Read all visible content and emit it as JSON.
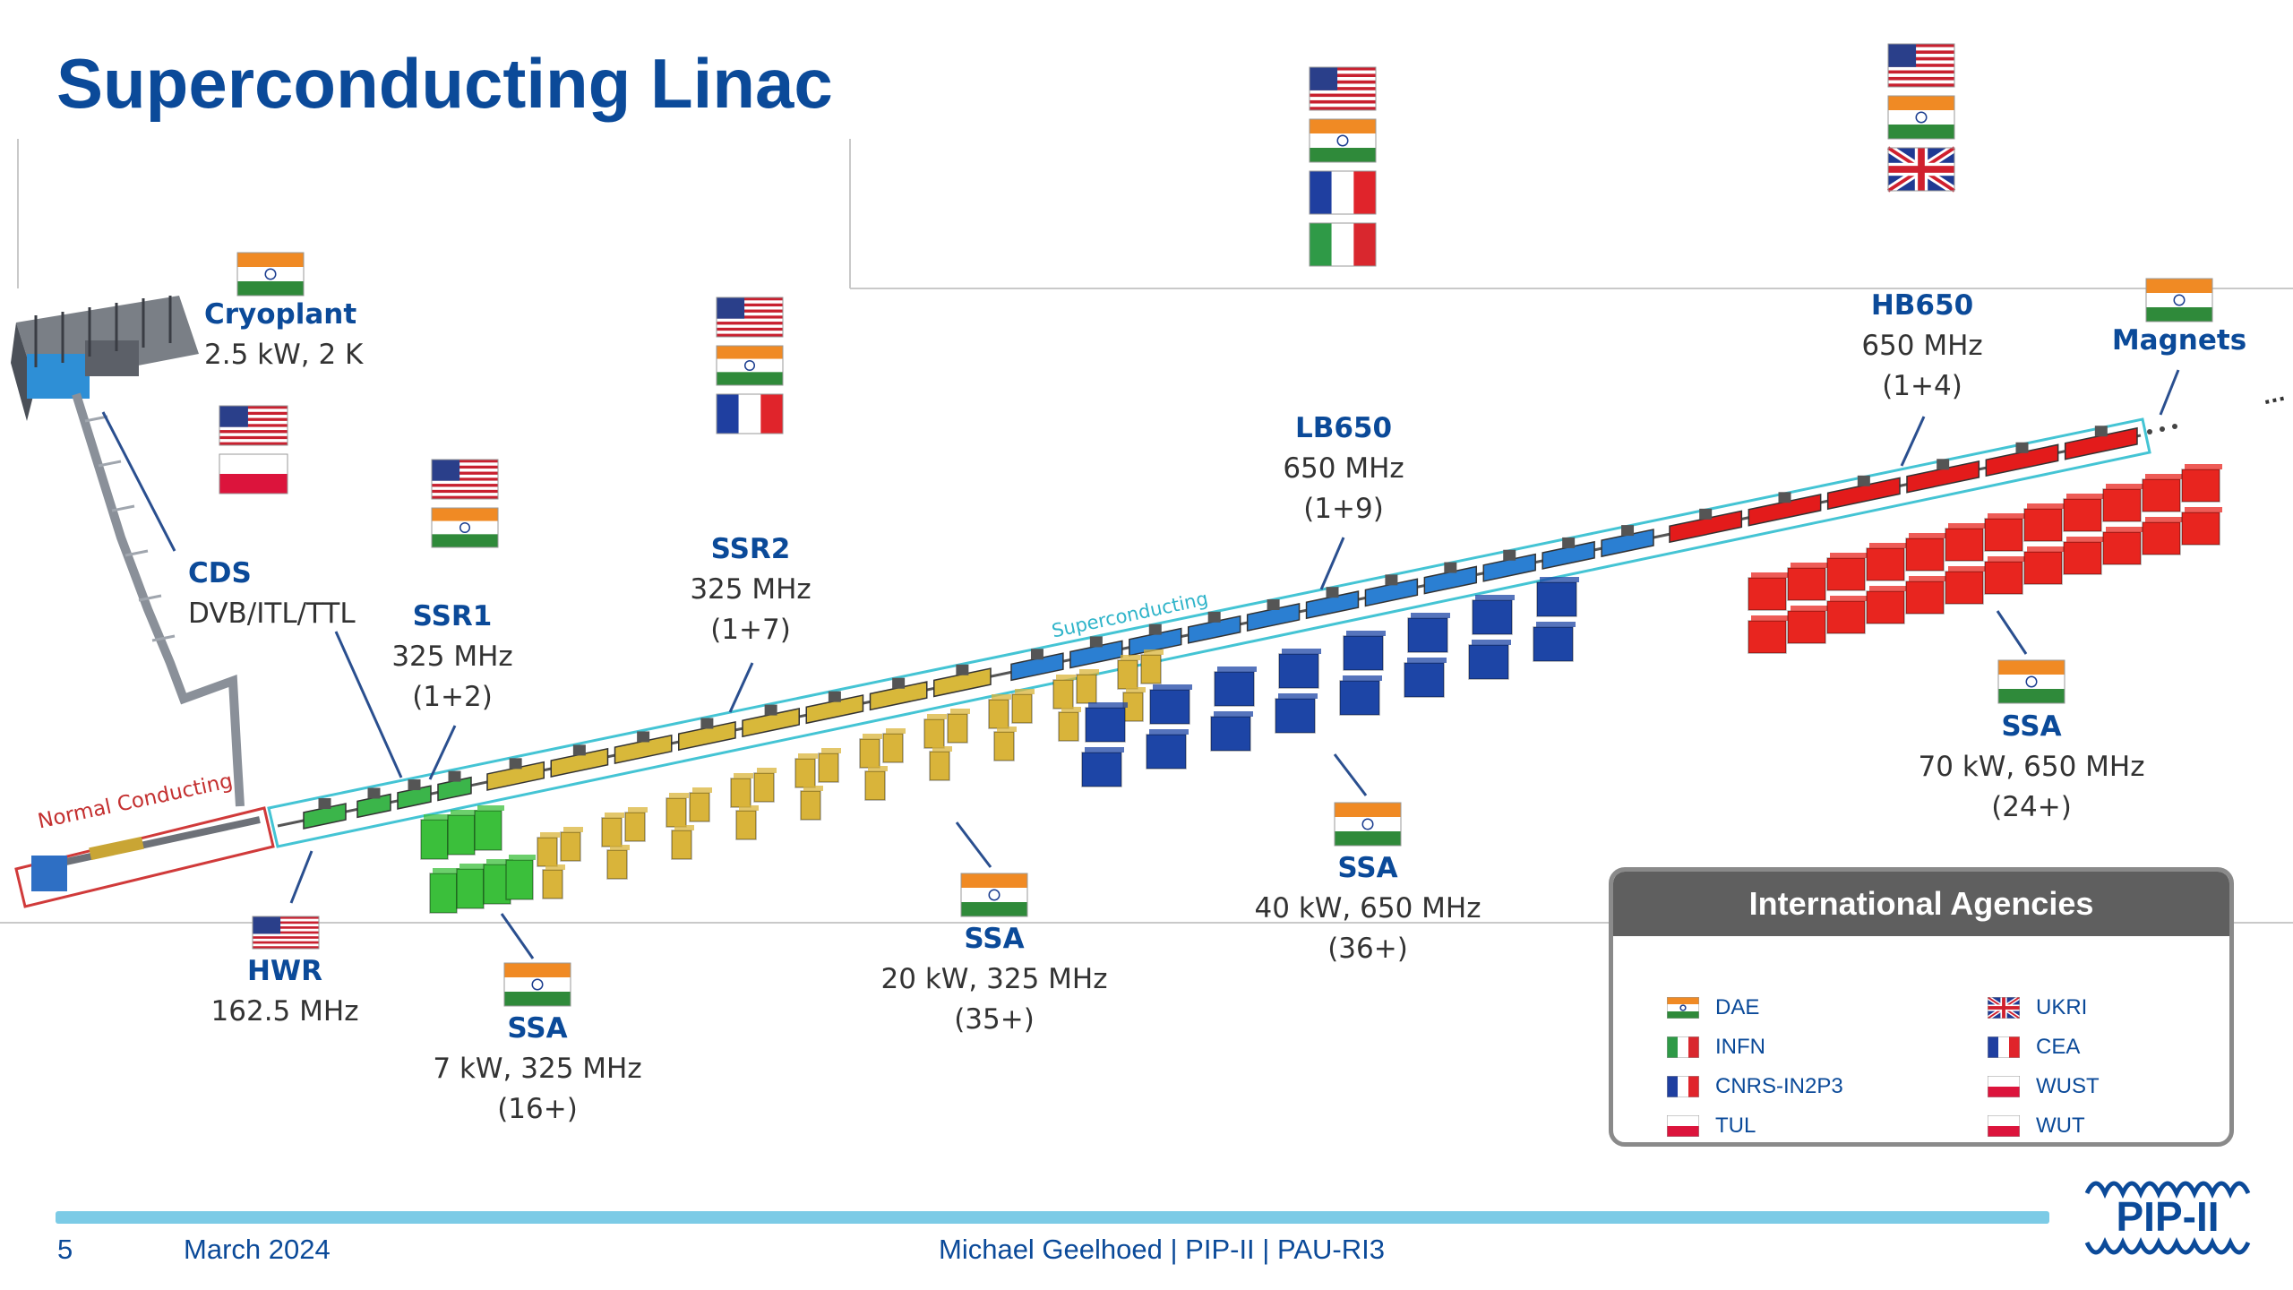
{
  "slide": {
    "title": "Superconducting Linac",
    "page_number": "5",
    "date": "March 2024",
    "footer_center": "Michael Geelhoed | PIP-II | PAU-RI3",
    "logo_text": "PIP-II",
    "ellipsis": "..."
  },
  "section_labels": {
    "normal_conducting": "Normal Conducting",
    "superconducting": "Superconducting"
  },
  "components": {
    "cryoplant": {
      "name": "Cryoplant",
      "desc": "2.5 kW, 2 K",
      "flags": [
        "India"
      ]
    },
    "cds": {
      "name": "CDS",
      "desc": "DVB/ITL/TTL",
      "flags": [
        "USA",
        "Poland"
      ]
    },
    "ssr1": {
      "name": "SSR1",
      "freq": "325 MHz",
      "count": "(1+2)",
      "flags": [
        "USA",
        "India"
      ]
    },
    "ssr2": {
      "name": "SSR2",
      "freq": "325 MHz",
      "count": "(1+7)",
      "flags": [
        "USA",
        "India",
        "France"
      ]
    },
    "lb650": {
      "name": "LB650",
      "freq": "650 MHz",
      "count": "(1+9)",
      "flags": [
        "USA",
        "India",
        "France",
        "Italy"
      ]
    },
    "hb650": {
      "name": "HB650",
      "freq": "650 MHz",
      "count": "(1+4)",
      "flags": [
        "USA",
        "India",
        "UK"
      ]
    },
    "magnets": {
      "name": "Magnets",
      "flags": [
        "India"
      ]
    },
    "hwr": {
      "name": "HWR",
      "freq": "162.5 MHz",
      "flags": [
        "USA"
      ]
    },
    "ssa_7kw": {
      "name": "SSA",
      "desc": "7 kW, 325 MHz",
      "count": "(16+)",
      "flags": [
        "India"
      ]
    },
    "ssa_20kw": {
      "name": "SSA",
      "desc": "20 kW, 325 MHz",
      "count": "(35+)",
      "flags": [
        "India"
      ]
    },
    "ssa_40kw": {
      "name": "SSA",
      "desc": "40 kW, 650 MHz",
      "count": "(36+)",
      "flags": [
        "India"
      ]
    },
    "ssa_70kw": {
      "name": "SSA",
      "desc": "70 kW, 650 MHz",
      "count": "(24+)",
      "flags": [
        "India"
      ]
    }
  },
  "agencies": {
    "title": "International Agencies",
    "items": [
      {
        "name": "DAE",
        "flag": "India"
      },
      {
        "name": "UKRI",
        "flag": "UK"
      },
      {
        "name": "INFN",
        "flag": "Italy"
      },
      {
        "name": "CEA",
        "flag": "France"
      },
      {
        "name": "CNRS-IN2P3",
        "flag": "France"
      },
      {
        "name": "WUST",
        "flag": "Poland"
      },
      {
        "name": "TUL",
        "flag": "Poland"
      },
      {
        "name": "WUT",
        "flag": "Poland"
      }
    ]
  },
  "colors": {
    "title_blue": "#0b4a99",
    "hwr_green": "#3bb54a",
    "ssr_yellow": "#d8b83a",
    "lb_blue": "#1f4fb0",
    "hb_red": "#e31b1b",
    "superconducting_outline": "#44c4d4",
    "normal_conducting_outline": "#d03a3a"
  }
}
